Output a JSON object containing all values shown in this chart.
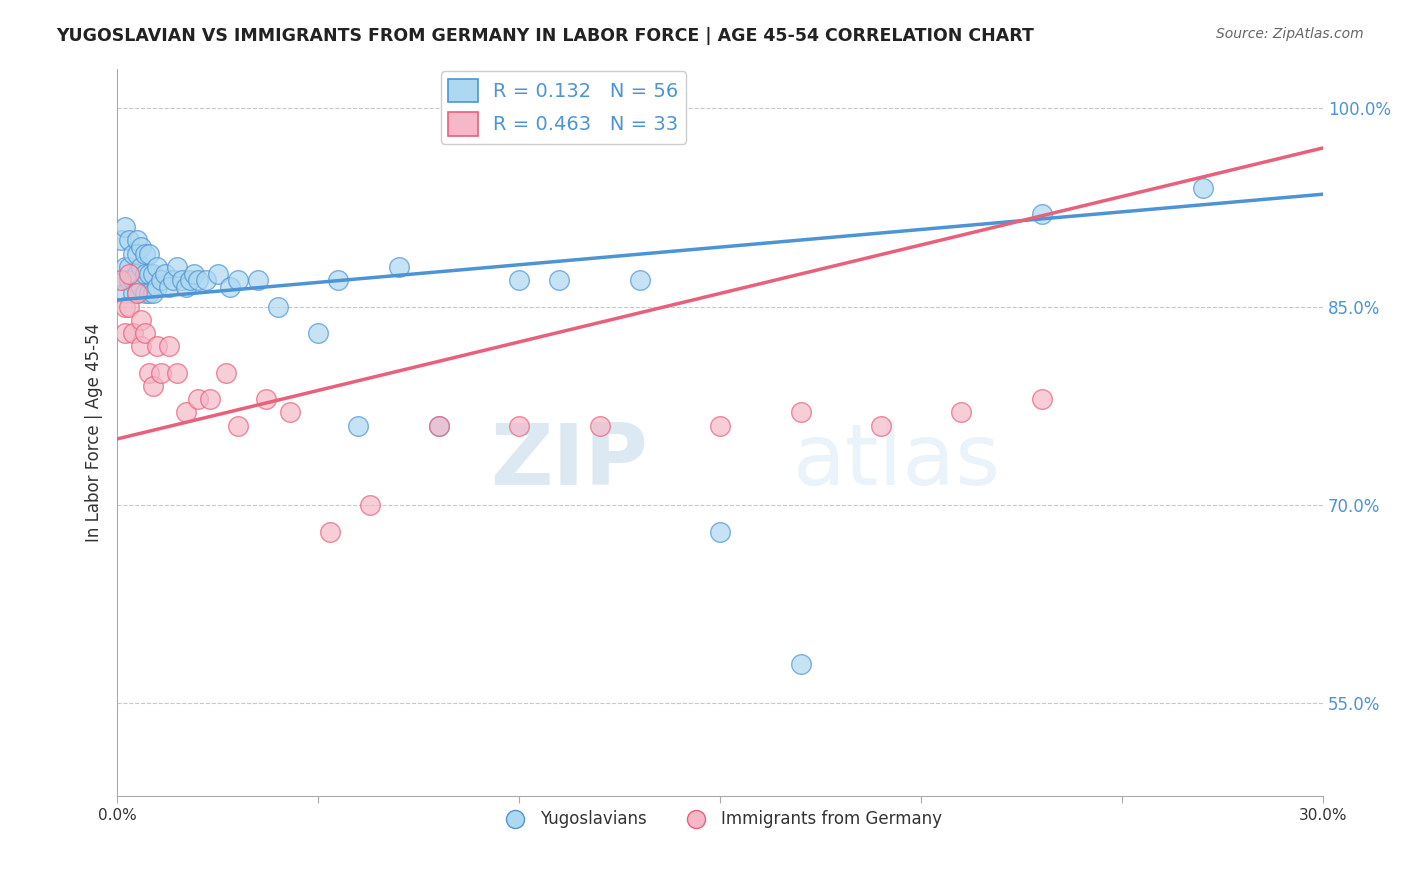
{
  "title": "YUGOSLAVIAN VS IMMIGRANTS FROM GERMANY IN LABOR FORCE | AGE 45-54 CORRELATION CHART",
  "source_text": "Source: ZipAtlas.com",
  "ylabel": "In Labor Force | Age 45-54",
  "xlim": [
    0.0,
    0.3
  ],
  "ylim": [
    0.48,
    1.03
  ],
  "yticks_right": [
    0.55,
    0.7,
    0.85,
    1.0
  ],
  "yticklabels_right": [
    "55.0%",
    "70.0%",
    "85.0%",
    "100.0%"
  ],
  "grid_ticks": [
    0.55,
    0.7,
    0.85,
    1.0
  ],
  "blue_R": 0.132,
  "blue_N": 56,
  "pink_R": 0.463,
  "pink_N": 33,
  "blue_color": "#add8f0",
  "pink_color": "#f4b8c8",
  "blue_line_color": "#4d94d5",
  "pink_line_color": "#e8607a",
  "legend_label_blue": "Yugoslavians",
  "legend_label_pink": "Immigrants from Germany",
  "blue_dots_x": [
    0.001,
    0.001,
    0.002,
    0.002,
    0.002,
    0.003,
    0.003,
    0.003,
    0.004,
    0.004,
    0.004,
    0.005,
    0.005,
    0.005,
    0.005,
    0.006,
    0.006,
    0.006,
    0.007,
    0.007,
    0.007,
    0.008,
    0.008,
    0.008,
    0.009,
    0.009,
    0.01,
    0.01,
    0.011,
    0.012,
    0.013,
    0.014,
    0.015,
    0.016,
    0.017,
    0.018,
    0.019,
    0.02,
    0.022,
    0.025,
    0.028,
    0.03,
    0.035,
    0.04,
    0.05,
    0.055,
    0.06,
    0.07,
    0.08,
    0.1,
    0.11,
    0.13,
    0.15,
    0.17,
    0.23,
    0.27
  ],
  "blue_dots_y": [
    0.9,
    0.87,
    0.91,
    0.88,
    0.86,
    0.9,
    0.88,
    0.87,
    0.89,
    0.87,
    0.86,
    0.9,
    0.89,
    0.875,
    0.86,
    0.895,
    0.88,
    0.865,
    0.89,
    0.875,
    0.86,
    0.89,
    0.875,
    0.86,
    0.875,
    0.86,
    0.88,
    0.865,
    0.87,
    0.875,
    0.865,
    0.87,
    0.88,
    0.87,
    0.865,
    0.87,
    0.875,
    0.87,
    0.87,
    0.875,
    0.865,
    0.87,
    0.87,
    0.85,
    0.83,
    0.87,
    0.76,
    0.88,
    0.76,
    0.87,
    0.87,
    0.87,
    0.68,
    0.58,
    0.92,
    0.94
  ],
  "pink_dots_x": [
    0.001,
    0.002,
    0.002,
    0.003,
    0.003,
    0.004,
    0.005,
    0.006,
    0.006,
    0.007,
    0.008,
    0.009,
    0.01,
    0.011,
    0.013,
    0.015,
    0.017,
    0.02,
    0.023,
    0.027,
    0.03,
    0.037,
    0.043,
    0.053,
    0.063,
    0.08,
    0.1,
    0.12,
    0.15,
    0.17,
    0.19,
    0.21,
    0.23
  ],
  "pink_dots_y": [
    0.87,
    0.85,
    0.83,
    0.875,
    0.85,
    0.83,
    0.86,
    0.84,
    0.82,
    0.83,
    0.8,
    0.79,
    0.82,
    0.8,
    0.82,
    0.8,
    0.77,
    0.78,
    0.78,
    0.8,
    0.76,
    0.78,
    0.77,
    0.68,
    0.7,
    0.76,
    0.76,
    0.76,
    0.76,
    0.77,
    0.76,
    0.77,
    0.78
  ],
  "watermark_text": "ZIPatlas",
  "background_color": "#ffffff",
  "grid_color": "#c8c8c8"
}
